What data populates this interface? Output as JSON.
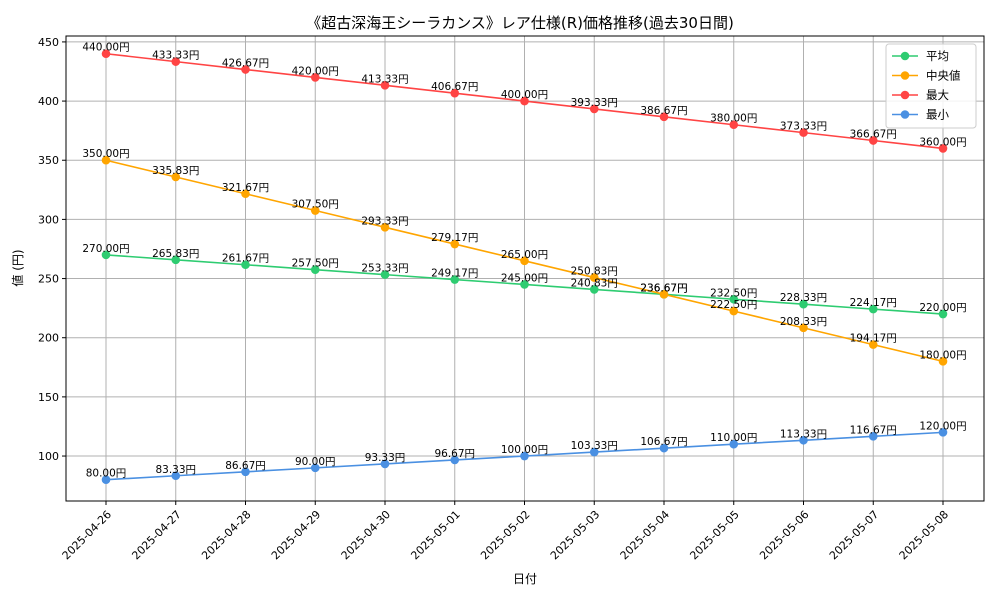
{
  "chart_data": {
    "type": "line",
    "title": "《超古深海王シーラカンス》レア仕様(R)価格推移(過去30日間)",
    "xlabel": "日付",
    "ylabel": "値 (円)",
    "ylim": [
      62,
      455
    ],
    "yticks": [
      100,
      150,
      200,
      250,
      300,
      350,
      400,
      450
    ],
    "grid": true,
    "legend_position": "top-right",
    "value_suffix": "円",
    "categories": [
      "2025-04-26",
      "2025-04-27",
      "2025-04-28",
      "2025-04-29",
      "2025-04-30",
      "2025-05-01",
      "2025-05-02",
      "2025-05-03",
      "2025-05-04",
      "2025-05-05",
      "2025-05-06",
      "2025-05-07",
      "2025-05-08"
    ],
    "series": [
      {
        "name": "平均",
        "color": "#2ecc71",
        "values": [
          270.0,
          265.83,
          261.67,
          257.5,
          253.33,
          249.17,
          245.0,
          240.83,
          236.67,
          232.5,
          228.33,
          224.17,
          220.0
        ]
      },
      {
        "name": "中央値",
        "color": "#ffa500",
        "values": [
          350.0,
          335.83,
          321.67,
          307.5,
          293.33,
          279.17,
          265.0,
          250.83,
          236.67,
          222.5,
          208.33,
          194.17,
          180.0
        ]
      },
      {
        "name": "最大",
        "color": "#ff4444",
        "values": [
          440.0,
          433.33,
          426.67,
          420.0,
          413.33,
          406.67,
          400.0,
          393.33,
          386.67,
          380.0,
          373.33,
          366.67,
          360.0
        ]
      },
      {
        "name": "最小",
        "color": "#4a90e2",
        "values": [
          80.0,
          83.33,
          86.67,
          90.0,
          93.33,
          96.67,
          100.0,
          103.33,
          106.67,
          110.0,
          113.33,
          116.67,
          120.0
        ]
      }
    ]
  }
}
